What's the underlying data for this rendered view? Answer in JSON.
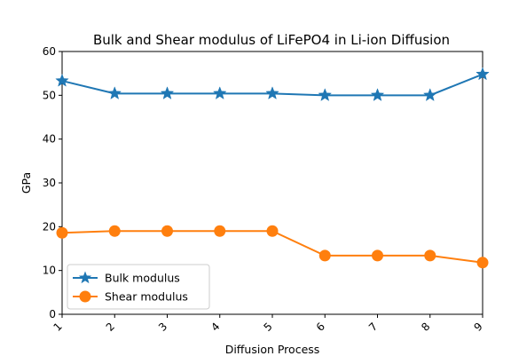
{
  "chart_data": {
    "type": "line",
    "title": "Bulk and Shear modulus of LiFePO4 in Li-ion Diffusion",
    "xlabel": "Diffusion Process",
    "ylabel": "GPa",
    "x": [
      1,
      2,
      3,
      4,
      5,
      6,
      7,
      8,
      9
    ],
    "xticks": [
      "1",
      "2",
      "3",
      "4",
      "5",
      "6",
      "7",
      "8",
      "9"
    ],
    "xlim": [
      1,
      9
    ],
    "ylim": [
      0,
      60
    ],
    "yticks": [
      "0",
      "10",
      "20",
      "30",
      "40",
      "50",
      "60"
    ],
    "grid": false,
    "legend_position": "lower-left",
    "series": [
      {
        "name": "Bulk modulus",
        "marker": "star",
        "color": "#1f77b4",
        "values": [
          53.3,
          50.4,
          50.4,
          50.4,
          50.4,
          50.0,
          50.0,
          50.0,
          54.8
        ]
      },
      {
        "name": "Shear modulus",
        "marker": "circle",
        "color": "#ff7f0e",
        "values": [
          18.6,
          19.0,
          19.0,
          19.0,
          19.0,
          13.4,
          13.4,
          13.4,
          11.8
        ]
      }
    ]
  }
}
